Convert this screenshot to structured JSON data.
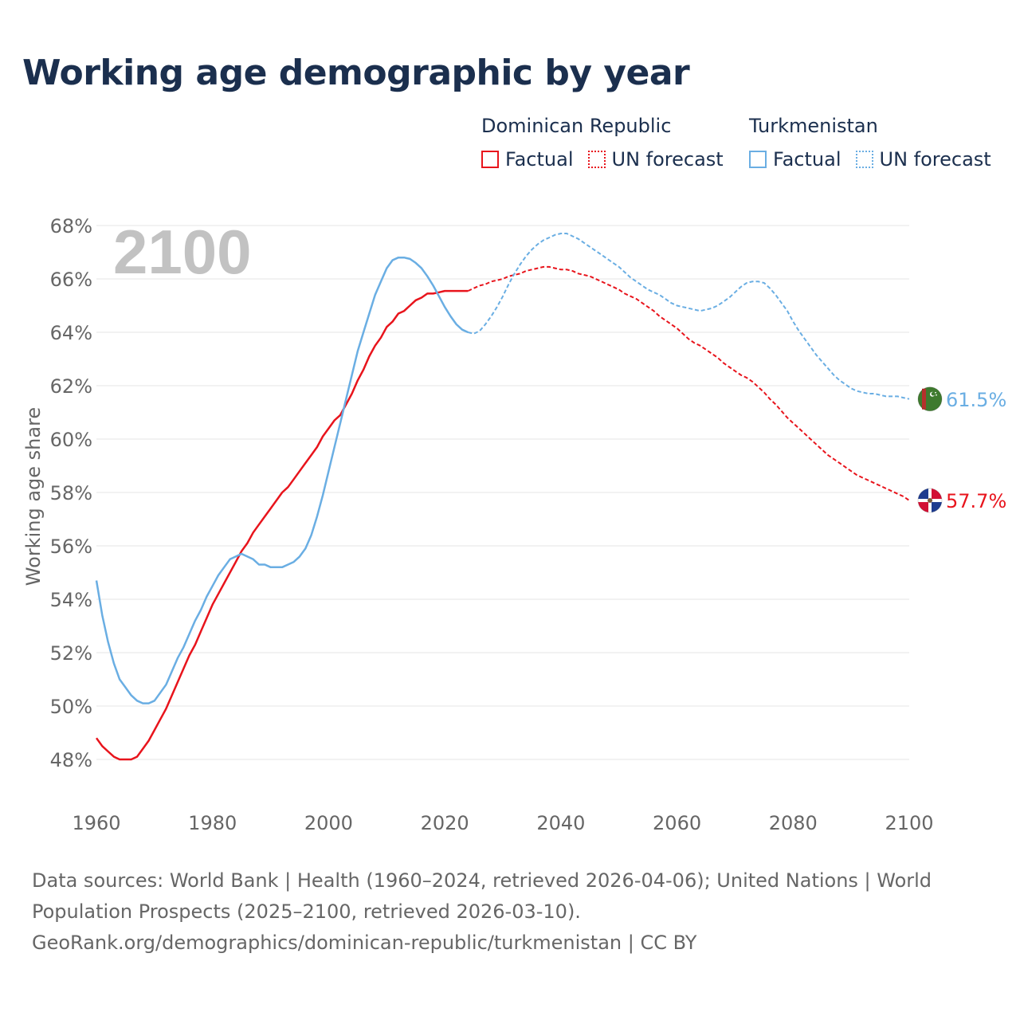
{
  "title": "Working age demographic by year",
  "legend": {
    "groups": [
      {
        "name": "Dominican Republic",
        "factual_label": "Factual",
        "forecast_label": "UN forecast",
        "color": "#e8141c"
      },
      {
        "name": "Turkmenistan",
        "factual_label": "Factual",
        "forecast_label": "UN forecast",
        "color": "#6aaee3"
      }
    ]
  },
  "footer": {
    "line1": "Data sources: World Bank | Health (1960–2024, retrieved 2026-04-06); United Nations | World",
    "line2": "Population Prospects (2025–2100, retrieved 2026-03-10).",
    "line3": "GeoRank.org/demographics/dominican-republic/turkmenistan | CC BY"
  },
  "chart_data": {
    "type": "line",
    "title": "Working age demographic by year",
    "year_watermark": "2100",
    "ylabel": "Working age share",
    "xlabel": "",
    "xlim": [
      1960,
      2100
    ],
    "ylim": [
      47,
      68
    ],
    "x_ticks": [
      1960,
      1980,
      2000,
      2020,
      2040,
      2060,
      2080,
      2100
    ],
    "y_ticks": [
      48,
      50,
      52,
      54,
      56,
      58,
      60,
      62,
      64,
      66,
      68
    ],
    "y_tick_format": "%",
    "grid": true,
    "forecast_start": 2024,
    "series": [
      {
        "name": "Dominican Republic",
        "color": "#e8141c",
        "end_label": "57.7%",
        "points": [
          [
            1960,
            48.8
          ],
          [
            1961,
            48.5
          ],
          [
            1962,
            48.3
          ],
          [
            1963,
            48.1
          ],
          [
            1964,
            48.0
          ],
          [
            1965,
            48.0
          ],
          [
            1966,
            48.0
          ],
          [
            1967,
            48.1
          ],
          [
            1968,
            48.4
          ],
          [
            1969,
            48.7
          ],
          [
            1970,
            49.1
          ],
          [
            1971,
            49.5
          ],
          [
            1972,
            49.9
          ],
          [
            1973,
            50.4
          ],
          [
            1974,
            50.9
          ],
          [
            1975,
            51.4
          ],
          [
            1976,
            51.9
          ],
          [
            1977,
            52.3
          ],
          [
            1978,
            52.8
          ],
          [
            1979,
            53.3
          ],
          [
            1980,
            53.8
          ],
          [
            1981,
            54.2
          ],
          [
            1982,
            54.6
          ],
          [
            1983,
            55.0
          ],
          [
            1984,
            55.4
          ],
          [
            1985,
            55.8
          ],
          [
            1986,
            56.1
          ],
          [
            1987,
            56.5
          ],
          [
            1988,
            56.8
          ],
          [
            1989,
            57.1
          ],
          [
            1990,
            57.4
          ],
          [
            1991,
            57.7
          ],
          [
            1992,
            58.0
          ],
          [
            1993,
            58.2
          ],
          [
            1994,
            58.5
          ],
          [
            1995,
            58.8
          ],
          [
            1996,
            59.1
          ],
          [
            1997,
            59.4
          ],
          [
            1998,
            59.7
          ],
          [
            1999,
            60.1
          ],
          [
            2000,
            60.4
          ],
          [
            2001,
            60.7
          ],
          [
            2002,
            60.9
          ],
          [
            2003,
            61.3
          ],
          [
            2004,
            61.7
          ],
          [
            2005,
            62.2
          ],
          [
            2006,
            62.6
          ],
          [
            2007,
            63.1
          ],
          [
            2008,
            63.5
          ],
          [
            2009,
            63.8
          ],
          [
            2010,
            64.2
          ],
          [
            2011,
            64.4
          ],
          [
            2012,
            64.7
          ],
          [
            2013,
            64.8
          ],
          [
            2014,
            65.0
          ],
          [
            2015,
            65.2
          ],
          [
            2016,
            65.3
          ],
          [
            2017,
            65.45
          ],
          [
            2018,
            65.45
          ],
          [
            2019,
            65.5
          ],
          [
            2020,
            65.55
          ],
          [
            2021,
            65.55
          ],
          [
            2022,
            65.55
          ],
          [
            2023,
            65.55
          ],
          [
            2024,
            65.55
          ],
          [
            2025,
            65.65
          ],
          [
            2026,
            65.75
          ],
          [
            2027,
            65.8
          ],
          [
            2028,
            65.9
          ],
          [
            2029,
            65.95
          ],
          [
            2030,
            66.0
          ],
          [
            2031,
            66.1
          ],
          [
            2032,
            66.15
          ],
          [
            2033,
            66.2
          ],
          [
            2034,
            66.3
          ],
          [
            2035,
            66.35
          ],
          [
            2036,
            66.4
          ],
          [
            2037,
            66.45
          ],
          [
            2038,
            66.45
          ],
          [
            2039,
            66.4
          ],
          [
            2040,
            66.35
          ],
          [
            2041,
            66.35
          ],
          [
            2042,
            66.3
          ],
          [
            2043,
            66.2
          ],
          [
            2044,
            66.15
          ],
          [
            2045,
            66.1
          ],
          [
            2046,
            66.0
          ],
          [
            2047,
            65.9
          ],
          [
            2048,
            65.8
          ],
          [
            2049,
            65.7
          ],
          [
            2050,
            65.6
          ],
          [
            2051,
            65.45
          ],
          [
            2052,
            65.35
          ],
          [
            2053,
            65.25
          ],
          [
            2054,
            65.1
          ],
          [
            2055,
            64.95
          ],
          [
            2056,
            64.8
          ],
          [
            2057,
            64.6
          ],
          [
            2058,
            64.45
          ],
          [
            2059,
            64.3
          ],
          [
            2060,
            64.15
          ],
          [
            2061,
            63.95
          ],
          [
            2062,
            63.75
          ],
          [
            2063,
            63.6
          ],
          [
            2064,
            63.5
          ],
          [
            2065,
            63.35
          ],
          [
            2066,
            63.2
          ],
          [
            2067,
            63.05
          ],
          [
            2068,
            62.85
          ],
          [
            2069,
            62.7
          ],
          [
            2070,
            62.55
          ],
          [
            2071,
            62.4
          ],
          [
            2072,
            62.3
          ],
          [
            2073,
            62.15
          ],
          [
            2074,
            61.95
          ],
          [
            2075,
            61.75
          ],
          [
            2076,
            61.5
          ],
          [
            2077,
            61.3
          ],
          [
            2078,
            61.05
          ],
          [
            2079,
            60.8
          ],
          [
            2080,
            60.6
          ],
          [
            2081,
            60.4
          ],
          [
            2082,
            60.2
          ],
          [
            2083,
            60.0
          ],
          [
            2084,
            59.8
          ],
          [
            2085,
            59.6
          ],
          [
            2086,
            59.4
          ],
          [
            2087,
            59.25
          ],
          [
            2088,
            59.1
          ],
          [
            2089,
            58.95
          ],
          [
            2090,
            58.8
          ],
          [
            2091,
            58.65
          ],
          [
            2092,
            58.55
          ],
          [
            2093,
            58.45
          ],
          [
            2094,
            58.35
          ],
          [
            2095,
            58.25
          ],
          [
            2096,
            58.15
          ],
          [
            2097,
            58.05
          ],
          [
            2098,
            57.95
          ],
          [
            2099,
            57.85
          ],
          [
            2100,
            57.7
          ]
        ]
      },
      {
        "name": "Turkmenistan",
        "color": "#6aaee3",
        "end_label": "61.5%",
        "points": [
          [
            1960,
            54.7
          ],
          [
            1961,
            53.4
          ],
          [
            1962,
            52.4
          ],
          [
            1963,
            51.6
          ],
          [
            1964,
            51.0
          ],
          [
            1965,
            50.7
          ],
          [
            1966,
            50.4
          ],
          [
            1967,
            50.2
          ],
          [
            1968,
            50.1
          ],
          [
            1969,
            50.1
          ],
          [
            1970,
            50.2
          ],
          [
            1971,
            50.5
          ],
          [
            1972,
            50.8
          ],
          [
            1973,
            51.3
          ],
          [
            1974,
            51.8
          ],
          [
            1975,
            52.2
          ],
          [
            1976,
            52.7
          ],
          [
            1977,
            53.2
          ],
          [
            1978,
            53.6
          ],
          [
            1979,
            54.1
          ],
          [
            1980,
            54.5
          ],
          [
            1981,
            54.9
          ],
          [
            1982,
            55.2
          ],
          [
            1983,
            55.5
          ],
          [
            1984,
            55.6
          ],
          [
            1985,
            55.7
          ],
          [
            1986,
            55.6
          ],
          [
            1987,
            55.5
          ],
          [
            1988,
            55.3
          ],
          [
            1989,
            55.3
          ],
          [
            1990,
            55.2
          ],
          [
            1991,
            55.2
          ],
          [
            1992,
            55.2
          ],
          [
            1993,
            55.3
          ],
          [
            1994,
            55.4
          ],
          [
            1995,
            55.6
          ],
          [
            1996,
            55.9
          ],
          [
            1997,
            56.4
          ],
          [
            1998,
            57.1
          ],
          [
            1999,
            57.9
          ],
          [
            2000,
            58.8
          ],
          [
            2001,
            59.7
          ],
          [
            2002,
            60.6
          ],
          [
            2003,
            61.5
          ],
          [
            2004,
            62.4
          ],
          [
            2005,
            63.3
          ],
          [
            2006,
            64.0
          ],
          [
            2007,
            64.7
          ],
          [
            2008,
            65.4
          ],
          [
            2009,
            65.9
          ],
          [
            2010,
            66.4
          ],
          [
            2011,
            66.7
          ],
          [
            2012,
            66.8
          ],
          [
            2013,
            66.8
          ],
          [
            2014,
            66.75
          ],
          [
            2015,
            66.6
          ],
          [
            2016,
            66.4
          ],
          [
            2017,
            66.1
          ],
          [
            2018,
            65.75
          ],
          [
            2019,
            65.35
          ],
          [
            2020,
            64.95
          ],
          [
            2021,
            64.6
          ],
          [
            2022,
            64.3
          ],
          [
            2023,
            64.1
          ],
          [
            2024,
            64.0
          ],
          [
            2025,
            63.95
          ],
          [
            2026,
            64.05
          ],
          [
            2027,
            64.3
          ],
          [
            2028,
            64.6
          ],
          [
            2029,
            64.95
          ],
          [
            2030,
            65.35
          ],
          [
            2031,
            65.8
          ],
          [
            2032,
            66.2
          ],
          [
            2033,
            66.55
          ],
          [
            2034,
            66.85
          ],
          [
            2035,
            67.1
          ],
          [
            2036,
            67.3
          ],
          [
            2037,
            67.45
          ],
          [
            2038,
            67.55
          ],
          [
            2039,
            67.65
          ],
          [
            2040,
            67.7
          ],
          [
            2041,
            67.7
          ],
          [
            2042,
            67.6
          ],
          [
            2043,
            67.5
          ],
          [
            2044,
            67.35
          ],
          [
            2045,
            67.2
          ],
          [
            2046,
            67.05
          ],
          [
            2047,
            66.9
          ],
          [
            2048,
            66.75
          ],
          [
            2049,
            66.6
          ],
          [
            2050,
            66.45
          ],
          [
            2051,
            66.25
          ],
          [
            2052,
            66.05
          ],
          [
            2053,
            65.9
          ],
          [
            2054,
            65.75
          ],
          [
            2055,
            65.6
          ],
          [
            2056,
            65.5
          ],
          [
            2057,
            65.4
          ],
          [
            2058,
            65.25
          ],
          [
            2059,
            65.1
          ],
          [
            2060,
            65.0
          ],
          [
            2061,
            64.95
          ],
          [
            2062,
            64.9
          ],
          [
            2063,
            64.85
          ],
          [
            2064,
            64.8
          ],
          [
            2065,
            64.85
          ],
          [
            2066,
            64.9
          ],
          [
            2067,
            65.0
          ],
          [
            2068,
            65.15
          ],
          [
            2069,
            65.3
          ],
          [
            2070,
            65.5
          ],
          [
            2071,
            65.7
          ],
          [
            2072,
            65.85
          ],
          [
            2073,
            65.9
          ],
          [
            2074,
            65.9
          ],
          [
            2075,
            65.85
          ],
          [
            2076,
            65.65
          ],
          [
            2077,
            65.4
          ],
          [
            2078,
            65.1
          ],
          [
            2079,
            64.8
          ],
          [
            2080,
            64.4
          ],
          [
            2081,
            64.05
          ],
          [
            2082,
            63.75
          ],
          [
            2083,
            63.45
          ],
          [
            2084,
            63.15
          ],
          [
            2085,
            62.9
          ],
          [
            2086,
            62.65
          ],
          [
            2087,
            62.4
          ],
          [
            2088,
            62.2
          ],
          [
            2089,
            62.05
          ],
          [
            2090,
            61.9
          ],
          [
            2091,
            61.8
          ],
          [
            2092,
            61.75
          ],
          [
            2093,
            61.7
          ],
          [
            2094,
            61.7
          ],
          [
            2095,
            61.65
          ],
          [
            2096,
            61.6
          ],
          [
            2097,
            61.6
          ],
          [
            2098,
            61.6
          ],
          [
            2099,
            61.55
          ],
          [
            2100,
            61.5
          ]
        ]
      }
    ]
  }
}
